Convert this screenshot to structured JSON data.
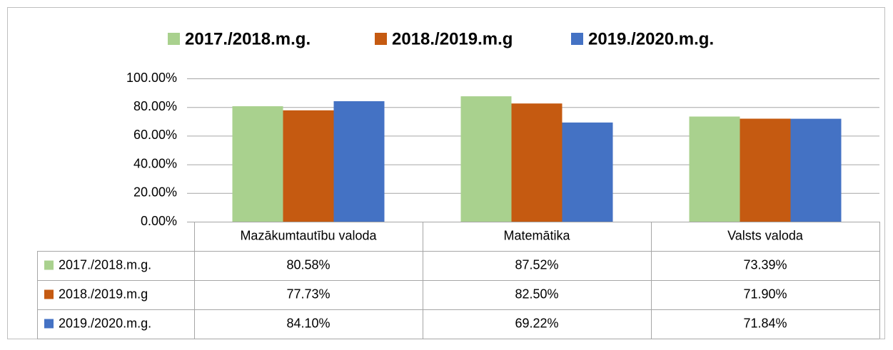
{
  "chart_data": {
    "type": "bar",
    "categories": [
      "Mazākumtautību valoda",
      "Matemātika",
      "Valsts valoda"
    ],
    "series": [
      {
        "name": "2017./2018.m.g.",
        "color": "#a9d18e",
        "values": [
          80.58,
          87.52,
          73.39
        ],
        "value_labels": [
          "80.58%",
          "87.52%",
          "73.39%"
        ]
      },
      {
        "name": "2018./2019.m.g",
        "color": "#c55a11",
        "values": [
          77.73,
          82.5,
          71.9
        ],
        "value_labels": [
          "77.73%",
          "82.50%",
          "71.90%"
        ]
      },
      {
        "name": "2019./2020.m.g.",
        "color": "#4472c4",
        "values": [
          84.1,
          69.22,
          71.84
        ],
        "value_labels": [
          "84.10%",
          "69.22%",
          "71.84%"
        ]
      }
    ],
    "ylim": [
      0,
      100
    ],
    "yticks": [
      {
        "value": 0,
        "label": "0.00%"
      },
      {
        "value": 20,
        "label": "20.00%"
      },
      {
        "value": 40,
        "label": "40.00%"
      },
      {
        "value": 60,
        "label": "60.00%"
      },
      {
        "value": 80,
        "label": "80.00%"
      },
      {
        "value": 100,
        "label": "100.00%"
      }
    ],
    "grid": true,
    "legend": "top"
  }
}
